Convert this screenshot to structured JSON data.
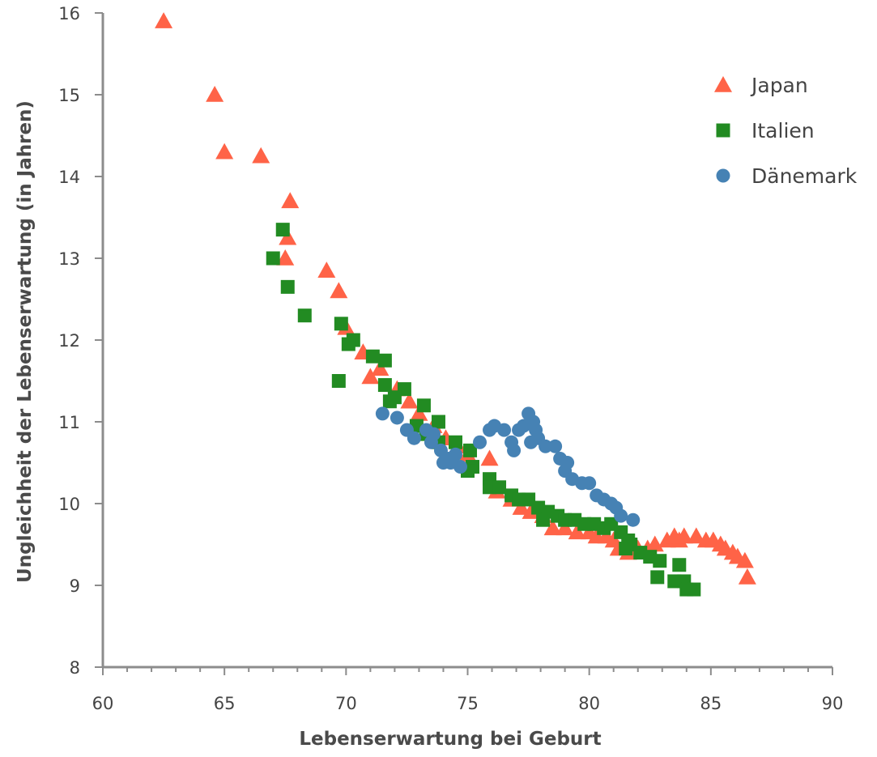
{
  "chart_data": {
    "type": "scatter",
    "xlabel": "Lebenserwartung bei Geburt",
    "ylabel": "Ungleichheit der Lebenserwartung (in Jahren)",
    "xlim": [
      60,
      90
    ],
    "ylim": [
      8,
      16
    ],
    "xticks": [
      60,
      65,
      70,
      75,
      80,
      85,
      90
    ],
    "yticks": [
      8,
      9,
      10,
      11,
      12,
      13,
      14,
      15,
      16
    ],
    "legend_position": "top-right",
    "grid": false,
    "series": [
      {
        "name": "Japan",
        "marker": "triangle",
        "color": "#ff6347",
        "points": [
          [
            62.5,
            15.9
          ],
          [
            64.6,
            15.0
          ],
          [
            65.0,
            14.3
          ],
          [
            66.5,
            14.25
          ],
          [
            67.7,
            13.7
          ],
          [
            67.6,
            13.25
          ],
          [
            67.5,
            13.0
          ],
          [
            69.2,
            12.85
          ],
          [
            69.7,
            12.6
          ],
          [
            70.0,
            12.15
          ],
          [
            70.7,
            11.85
          ],
          [
            71.0,
            11.55
          ],
          [
            71.4,
            11.65
          ],
          [
            72.1,
            11.4
          ],
          [
            72.6,
            11.25
          ],
          [
            73.0,
            11.1
          ],
          [
            73.6,
            10.95
          ],
          [
            74.1,
            10.8
          ],
          [
            74.6,
            10.7
          ],
          [
            75.0,
            10.6
          ],
          [
            75.9,
            10.55
          ],
          [
            76.2,
            10.15
          ],
          [
            76.8,
            10.05
          ],
          [
            77.2,
            9.95
          ],
          [
            77.6,
            9.9
          ],
          [
            78.1,
            9.85
          ],
          [
            78.5,
            9.7
          ],
          [
            79.0,
            9.7
          ],
          [
            79.5,
            9.65
          ],
          [
            80.0,
            9.65
          ],
          [
            80.3,
            9.6
          ],
          [
            80.7,
            9.6
          ],
          [
            81.0,
            9.55
          ],
          [
            81.2,
            9.45
          ],
          [
            81.6,
            9.4
          ],
          [
            82.0,
            9.45
          ],
          [
            82.4,
            9.45
          ],
          [
            82.7,
            9.5
          ],
          [
            83.2,
            9.55
          ],
          [
            83.5,
            9.6
          ],
          [
            83.7,
            9.55
          ],
          [
            83.9,
            9.6
          ],
          [
            84.4,
            9.6
          ],
          [
            84.8,
            9.55
          ],
          [
            85.1,
            9.55
          ],
          [
            85.4,
            9.5
          ],
          [
            85.6,
            9.45
          ],
          [
            85.9,
            9.4
          ],
          [
            86.1,
            9.35
          ],
          [
            86.4,
            9.3
          ],
          [
            86.5,
            9.1
          ]
        ]
      },
      {
        "name": "Italien",
        "marker": "square",
        "color": "#228b22",
        "points": [
          [
            67.4,
            13.35
          ],
          [
            67.0,
            13.0
          ],
          [
            67.6,
            12.65
          ],
          [
            68.3,
            12.3
          ],
          [
            69.8,
            12.2
          ],
          [
            70.3,
            12.0
          ],
          [
            70.1,
            11.95
          ],
          [
            71.1,
            11.8
          ],
          [
            71.6,
            11.75
          ],
          [
            69.7,
            11.5
          ],
          [
            71.6,
            11.45
          ],
          [
            72.4,
            11.4
          ],
          [
            71.8,
            11.25
          ],
          [
            72.0,
            11.3
          ],
          [
            73.2,
            11.2
          ],
          [
            73.8,
            11.0
          ],
          [
            72.9,
            10.95
          ],
          [
            73.3,
            10.85
          ],
          [
            73.8,
            10.75
          ],
          [
            74.5,
            10.75
          ],
          [
            75.1,
            10.65
          ],
          [
            75.2,
            10.45
          ],
          [
            75.0,
            10.4
          ],
          [
            75.9,
            10.3
          ],
          [
            75.9,
            10.2
          ],
          [
            76.3,
            10.2
          ],
          [
            76.8,
            10.1
          ],
          [
            77.1,
            10.05
          ],
          [
            77.5,
            10.05
          ],
          [
            77.9,
            9.95
          ],
          [
            78.3,
            9.9
          ],
          [
            78.1,
            9.8
          ],
          [
            78.7,
            9.85
          ],
          [
            79.0,
            9.8
          ],
          [
            79.4,
            9.8
          ],
          [
            79.8,
            9.75
          ],
          [
            80.2,
            9.75
          ],
          [
            80.6,
            9.7
          ],
          [
            80.9,
            9.75
          ],
          [
            81.3,
            9.65
          ],
          [
            81.6,
            9.55
          ],
          [
            81.7,
            9.5
          ],
          [
            81.5,
            9.45
          ],
          [
            82.1,
            9.4
          ],
          [
            82.5,
            9.35
          ],
          [
            82.9,
            9.3
          ],
          [
            83.7,
            9.25
          ],
          [
            82.8,
            9.1
          ],
          [
            83.9,
            9.05
          ],
          [
            83.5,
            9.05
          ],
          [
            84.0,
            8.95
          ],
          [
            84.3,
            8.95
          ]
        ]
      },
      {
        "name": "Dänemark",
        "marker": "circle",
        "color": "#4682b4",
        "points": [
          [
            71.5,
            11.1
          ],
          [
            72.1,
            11.05
          ],
          [
            72.5,
            10.9
          ],
          [
            72.8,
            10.8
          ],
          [
            73.3,
            10.9
          ],
          [
            73.6,
            10.85
          ],
          [
            73.5,
            10.75
          ],
          [
            73.9,
            10.65
          ],
          [
            74.2,
            10.55
          ],
          [
            74.5,
            10.6
          ],
          [
            74.7,
            10.45
          ],
          [
            74.3,
            10.5
          ],
          [
            74.0,
            10.5
          ],
          [
            75.5,
            10.75
          ],
          [
            75.9,
            10.9
          ],
          [
            76.1,
            10.95
          ],
          [
            76.5,
            10.9
          ],
          [
            76.8,
            10.75
          ],
          [
            76.9,
            10.65
          ],
          [
            77.1,
            10.9
          ],
          [
            77.3,
            10.95
          ],
          [
            77.5,
            11.1
          ],
          [
            77.7,
            11.0
          ],
          [
            77.8,
            10.9
          ],
          [
            77.9,
            10.8
          ],
          [
            77.6,
            10.75
          ],
          [
            78.2,
            10.7
          ],
          [
            78.6,
            10.7
          ],
          [
            78.8,
            10.55
          ],
          [
            79.1,
            10.5
          ],
          [
            79.0,
            10.4
          ],
          [
            79.3,
            10.3
          ],
          [
            79.7,
            10.25
          ],
          [
            80.0,
            10.25
          ],
          [
            80.3,
            10.1
          ],
          [
            80.6,
            10.05
          ],
          [
            80.9,
            10.0
          ],
          [
            81.1,
            9.95
          ],
          [
            81.3,
            9.85
          ],
          [
            81.8,
            9.8
          ]
        ]
      }
    ]
  }
}
